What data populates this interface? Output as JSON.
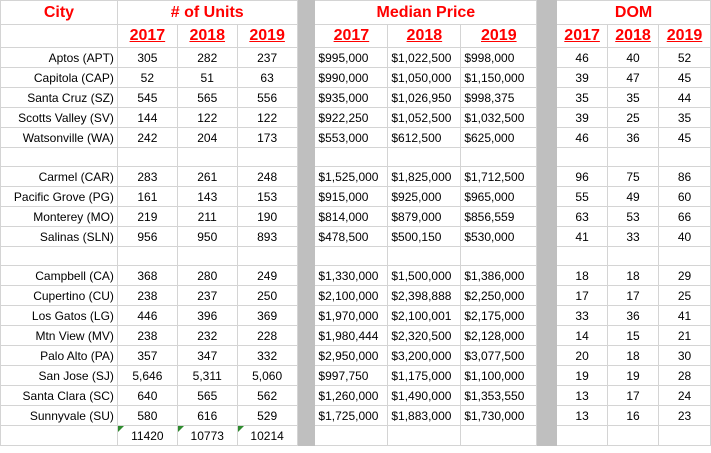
{
  "headers": {
    "city": "City",
    "units": "# of Units",
    "price": "Median Price",
    "dom": "DOM",
    "years": [
      "2017",
      "2018",
      "2019"
    ]
  },
  "groups": [
    {
      "rows": [
        {
          "city": "Aptos (APT)",
          "units": [
            "305",
            "282",
            "237"
          ],
          "price": [
            "$995,000",
            "$1,022,500",
            "$998,000"
          ],
          "dom": [
            "46",
            "40",
            "52"
          ]
        },
        {
          "city": "Capitola (CAP)",
          "units": [
            "52",
            "51",
            "63"
          ],
          "price": [
            "$990,000",
            "$1,050,000",
            "$1,150,000"
          ],
          "dom": [
            "39",
            "47",
            "45"
          ]
        },
        {
          "city": "Santa Cruz (SZ)",
          "units": [
            "545",
            "565",
            "556"
          ],
          "price": [
            "$935,000",
            "$1,026,950",
            "$998,375"
          ],
          "dom": [
            "35",
            "35",
            "44"
          ]
        },
        {
          "city": "Scotts Valley (SV)",
          "units": [
            "144",
            "122",
            "122"
          ],
          "price": [
            "$922,250",
            "$1,052,500",
            "$1,032,500"
          ],
          "dom": [
            "39",
            "25",
            "35"
          ]
        },
        {
          "city": "Watsonville (WA)",
          "units": [
            "242",
            "204",
            "173"
          ],
          "price": [
            "$553,000",
            "$612,500",
            "$625,000"
          ],
          "dom": [
            "46",
            "36",
            "45"
          ]
        }
      ]
    },
    {
      "rows": [
        {
          "city": "Carmel (CAR)",
          "units": [
            "283",
            "261",
            "248"
          ],
          "price": [
            "$1,525,000",
            "$1,825,000",
            "$1,712,500"
          ],
          "dom": [
            "96",
            "75",
            "86"
          ]
        },
        {
          "city": "Pacific Grove (PG)",
          "units": [
            "161",
            "143",
            "153"
          ],
          "price": [
            "$915,000",
            "$925,000",
            "$965,000"
          ],
          "dom": [
            "55",
            "49",
            "60"
          ]
        },
        {
          "city": "Monterey (MO)",
          "units": [
            "219",
            "211",
            "190"
          ],
          "price": [
            "$814,000",
            "$879,000",
            "$856,559"
          ],
          "dom": [
            "63",
            "53",
            "66"
          ]
        },
        {
          "city": "Salinas (SLN)",
          "units": [
            "956",
            "950",
            "893"
          ],
          "price": [
            "$478,500",
            "$500,150",
            "$530,000"
          ],
          "dom": [
            "41",
            "33",
            "40"
          ]
        }
      ]
    },
    {
      "rows": [
        {
          "city": "Campbell (CA)",
          "units": [
            "368",
            "280",
            "249"
          ],
          "price": [
            "$1,330,000",
            "$1,500,000",
            "$1,386,000"
          ],
          "dom": [
            "18",
            "18",
            "29"
          ]
        },
        {
          "city": "Cupertino (CU)",
          "units": [
            "238",
            "237",
            "250"
          ],
          "price": [
            "$2,100,000",
            "$2,398,888",
            "$2,250,000"
          ],
          "dom": [
            "17",
            "17",
            "25"
          ]
        },
        {
          "city": "Los Gatos (LG)",
          "units": [
            "446",
            "396",
            "369"
          ],
          "price": [
            "$1,970,000",
            "$2,100,001",
            "$2,175,000"
          ],
          "dom": [
            "33",
            "36",
            "41"
          ]
        },
        {
          "city": "Mtn View (MV)",
          "units": [
            "238",
            "232",
            "228"
          ],
          "price": [
            "$1,980,444",
            "$2,320,500",
            "$2,128,000"
          ],
          "dom": [
            "14",
            "15",
            "21"
          ]
        },
        {
          "city": "Palo Alto (PA)",
          "units": [
            "357",
            "347",
            "332"
          ],
          "price": [
            "$2,950,000",
            "$3,200,000",
            "$3,077,500"
          ],
          "dom": [
            "20",
            "18",
            "30"
          ]
        },
        {
          "city": "San Jose (SJ)",
          "units": [
            "5,646",
            "5,311",
            "5,060"
          ],
          "price": [
            "$997,750",
            "$1,175,000",
            "$1,100,000"
          ],
          "dom": [
            "19",
            "19",
            "28"
          ]
        },
        {
          "city": "Santa Clara (SC)",
          "units": [
            "640",
            "565",
            "562"
          ],
          "price": [
            "$1,260,000",
            "$1,490,000",
            "$1,353,550"
          ],
          "dom": [
            "13",
            "17",
            "24"
          ]
        },
        {
          "city": "Sunnyvale (SU)",
          "units": [
            "580",
            "616",
            "529"
          ],
          "price": [
            "$1,725,000",
            "$1,883,000",
            "$1,730,000"
          ],
          "dom": [
            "13",
            "16",
            "23"
          ]
        }
      ]
    }
  ],
  "totals": [
    "11420",
    "10773",
    "10214"
  ],
  "colors": {
    "header": "#ff0000",
    "separator": "#bfbfbf",
    "gridline": "#d4d4d4",
    "flag": "#2e8b2e"
  }
}
